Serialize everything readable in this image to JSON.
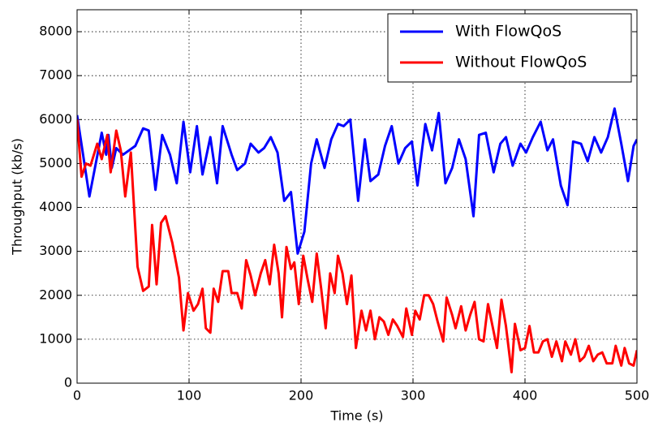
{
  "chart_data": {
    "type": "line",
    "xlabel": "Time (s)",
    "ylabel": "Throughput (kb/s)",
    "xlim": [
      0,
      500
    ],
    "xticks": [
      0,
      100,
      200,
      300,
      400,
      500
    ],
    "ylim": [
      0,
      8500
    ],
    "yticks": [
      0,
      1000,
      2000,
      3000,
      4000,
      5000,
      6000,
      7000,
      8000
    ],
    "grid": true,
    "legend": "upper right",
    "series": [
      {
        "name": "With FlowQoS",
        "color": "#0000ff",
        "x": [
          0,
          11,
          22,
          26,
          28,
          31,
          35,
          41,
          52,
          59,
          64,
          70,
          76,
          83,
          89,
          95,
          101,
          107,
          112,
          119,
          125,
          130,
          138,
          143,
          150,
          155,
          162,
          167,
          173,
          179,
          185,
          191,
          197,
          203,
          209,
          214,
          221,
          227,
          233,
          238,
          244,
          251,
          257,
          262,
          269,
          275,
          281,
          287,
          293,
          299,
          304,
          311,
          317,
          323,
          329,
          335,
          341,
          347,
          354,
          359,
          365,
          372,
          378,
          383,
          389,
          396,
          401,
          407,
          414,
          420,
          425,
          432,
          438,
          443,
          450,
          456,
          462,
          468,
          474,
          480,
          486,
          492,
          497,
          500
        ],
        "values": [
          6100,
          4250,
          5700,
          5200,
          5650,
          4900,
          5350,
          5200,
          5400,
          5800,
          5750,
          4400,
          5650,
          5200,
          4550,
          5950,
          4800,
          5850,
          4750,
          5600,
          4550,
          5850,
          5200,
          4850,
          5000,
          5450,
          5250,
          5350,
          5600,
          5250,
          4150,
          4350,
          2950,
          3450,
          5000,
          5550,
          4900,
          5550,
          5900,
          5850,
          6000,
          4150,
          5550,
          4600,
          4750,
          5400,
          5850,
          5000,
          5350,
          5500,
          4500,
          5900,
          5300,
          6150,
          4550,
          4900,
          5550,
          5100,
          3800,
          5650,
          5700,
          4800,
          5450,
          5600,
          4950,
          5450,
          5250,
          5600,
          5950,
          5300,
          5550,
          4500,
          4050,
          5500,
          5450,
          5050,
          5600,
          5250,
          5600,
          6250,
          5450,
          4600,
          5400,
          5550
        ]
      },
      {
        "name": "Without FlowQoS",
        "color": "#ff0000",
        "x": [
          0,
          4,
          8,
          12,
          18,
          22,
          27,
          30,
          35,
          39,
          43,
          48,
          54,
          59,
          64,
          67,
          71,
          75,
          79,
          85,
          91,
          95,
          99,
          104,
          108,
          112,
          115,
          119,
          122,
          126,
          130,
          135,
          138,
          143,
          147,
          151,
          155,
          159,
          164,
          168,
          172,
          176,
          180,
          183,
          187,
          191,
          194,
          198,
          202,
          206,
          210,
          214,
          218,
          222,
          226,
          230,
          233,
          237,
          241,
          245,
          249,
          254,
          258,
          262,
          266,
          270,
          274,
          278,
          282,
          286,
          291,
          294,
          299,
          302,
          306,
          310,
          314,
          318,
          322,
          327,
          330,
          335,
          338,
          343,
          347,
          351,
          355,
          359,
          363,
          367,
          371,
          375,
          379,
          383,
          388,
          391,
          396,
          400,
          404,
          408,
          412,
          416,
          420,
          424,
          428,
          433,
          436,
          441,
          445,
          449,
          453,
          457,
          461,
          465,
          469,
          473,
          478,
          481,
          486,
          489,
          493,
          497,
          500
        ],
        "values": [
          6000,
          4700,
          5000,
          4950,
          5450,
          5100,
          5650,
          4800,
          5750,
          5300,
          4250,
          5250,
          2650,
          2100,
          2200,
          3600,
          2250,
          3650,
          3800,
          3200,
          2400,
          1200,
          2050,
          1650,
          1800,
          2150,
          1250,
          1150,
          2150,
          1850,
          2550,
          2550,
          2050,
          2050,
          1700,
          2800,
          2450,
          2000,
          2500,
          2800,
          2250,
          3150,
          2500,
          1500,
          3100,
          2600,
          2750,
          1800,
          2900,
          2350,
          1850,
          2950,
          2150,
          1250,
          2500,
          2050,
          2900,
          2500,
          1800,
          2450,
          800,
          1650,
          1200,
          1650,
          1000,
          1500,
          1400,
          1100,
          1450,
          1300,
          1050,
          1700,
          1100,
          1650,
          1450,
          2000,
          2000,
          1800,
          1400,
          950,
          1950,
          1550,
          1250,
          1750,
          1200,
          1550,
          1850,
          1000,
          950,
          1800,
          1300,
          800,
          1900,
          1300,
          250,
          1350,
          750,
          800,
          1300,
          700,
          700,
          950,
          1000,
          600,
          950,
          500,
          950,
          650,
          1000,
          500,
          600,
          850,
          500,
          650,
          700,
          450,
          450,
          850,
          400,
          800,
          450,
          400,
          750
        ]
      }
    ]
  }
}
